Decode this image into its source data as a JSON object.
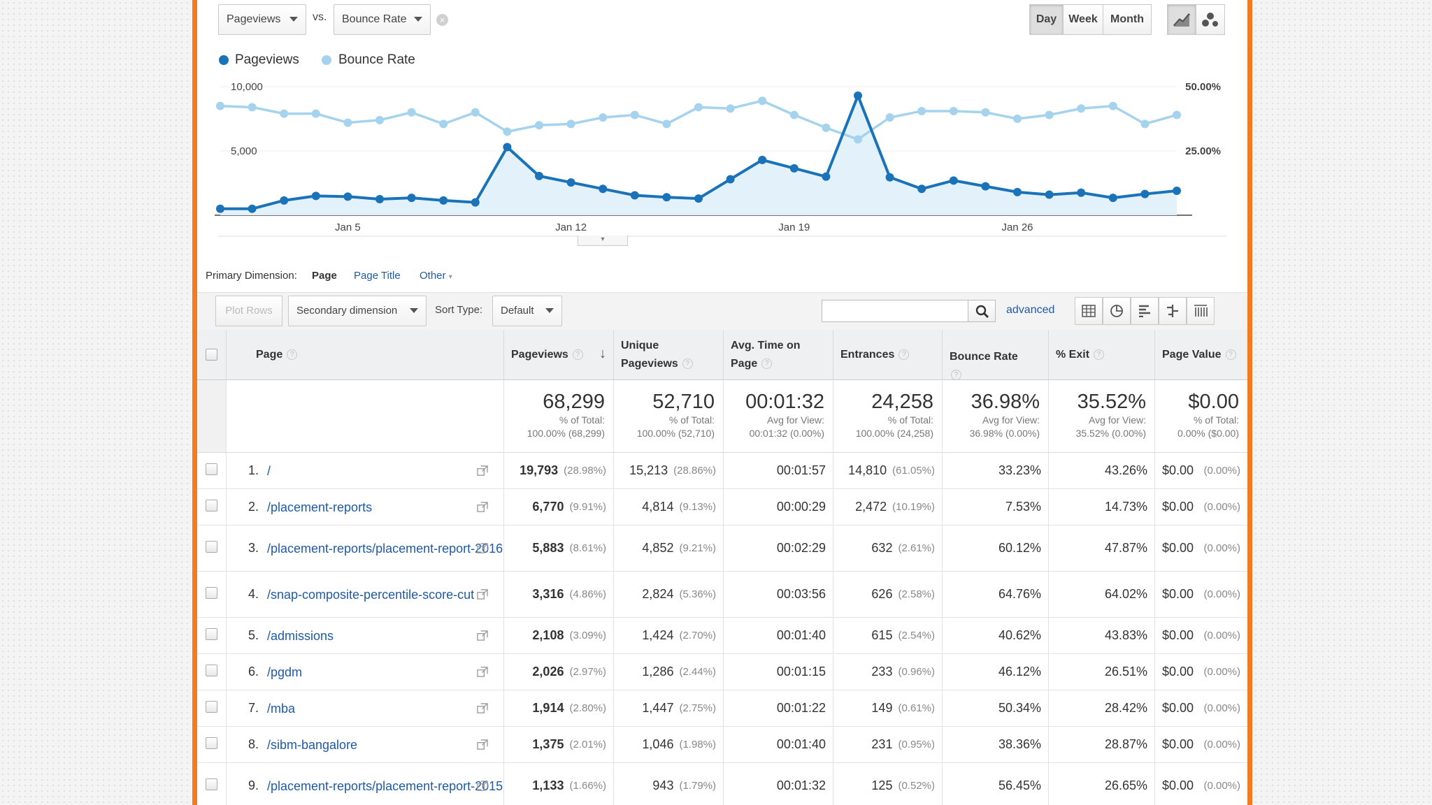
{
  "controls": {
    "metric1": "Pageviews",
    "vs": "vs.",
    "metric2": "Bounce Rate",
    "range_buttons": [
      "Day",
      "Week",
      "Month"
    ]
  },
  "legend": {
    "series1": "Pageviews",
    "series2": "Bounce Rate"
  },
  "colors": {
    "pageviews": "#1a73b9",
    "bounce_rate": "#a5d3ee",
    "frame": "#f47a20",
    "link": "#1f5aa6"
  },
  "chart_data": {
    "type": "line",
    "x_labels": [
      "Jan 5",
      "Jan 12",
      "Jan 19",
      "Jan 26"
    ],
    "left_axis": {
      "ticks": [
        "10,000",
        "5,000"
      ],
      "range": [
        0,
        10000
      ]
    },
    "right_axis": {
      "ticks": [
        "50.00%",
        "25.00%"
      ],
      "range": [
        0,
        50
      ]
    },
    "series": [
      {
        "name": "Pageviews",
        "axis": "left",
        "values": [
          500,
          500,
          1150,
          1500,
          1450,
          1250,
          1350,
          1150,
          1000,
          5300,
          3050,
          2550,
          2050,
          1550,
          1400,
          1300,
          2800,
          4300,
          3650,
          3000,
          9300,
          2950,
          2050,
          2700,
          2250,
          1800,
          1600,
          1750,
          1350,
          1650,
          1900
        ]
      },
      {
        "name": "Bounce Rate",
        "axis": "right",
        "values": [
          42.5,
          42,
          39.5,
          39.5,
          36,
          37,
          40,
          35.5,
          40,
          32.5,
          35,
          35.5,
          38,
          39,
          35.5,
          42,
          41.5,
          44.5,
          39,
          34,
          29.5,
          38,
          40.5,
          40.5,
          40,
          37.5,
          39,
          41.5,
          42.5,
          35.5,
          39
        ]
      }
    ]
  },
  "dimension": {
    "label": "Primary Dimension:",
    "options": [
      "Page",
      "Page Title",
      "Other"
    ]
  },
  "toolbar": {
    "plot_rows": "Plot Rows",
    "secondary_dimension": "Secondary dimension",
    "sort_type_label": "Sort Type:",
    "sort_type_value": "Default",
    "search_placeholder": "",
    "advanced": "advanced"
  },
  "table": {
    "headers": [
      "Page",
      "Pageviews",
      "Unique Pageviews",
      "Avg. Time on Page",
      "Entrances",
      "Bounce Rate",
      "% Exit",
      "Page Value"
    ],
    "totals": [
      {
        "big": "68,299",
        "l1": "% of Total:",
        "l2": "100.00% (68,299)"
      },
      {
        "big": "52,710",
        "l1": "% of Total:",
        "l2": "100.00% (52,710)"
      },
      {
        "big": "00:01:32",
        "l1": "Avg for View:",
        "l2": "00:01:32 (0.00%)"
      },
      {
        "big": "24,258",
        "l1": "% of Total:",
        "l2": "100.00% (24,258)"
      },
      {
        "big": "36.98%",
        "l1": "Avg for View:",
        "l2": "36.98% (0.00%)"
      },
      {
        "big": "35.52%",
        "l1": "Avg for View:",
        "l2": "35.52% (0.00%)"
      },
      {
        "big": "$0.00",
        "l1": "% of Total:",
        "l2": "0.00% ($0.00)"
      }
    ],
    "rows": [
      {
        "n": "1.",
        "page": "/",
        "pv": "19,793",
        "pvp": "(28.98%)",
        "upv": "15,213",
        "upvp": "(28.86%)",
        "time": "00:01:57",
        "ent": "14,810",
        "entp": "(61.05%)",
        "br": "33.23%",
        "exit": "43.26%",
        "val": "$0.00",
        "valp": "(0.00%)"
      },
      {
        "n": "2.",
        "page": "/placement-reports",
        "pv": "6,770",
        "pvp": "(9.91%)",
        "upv": "4,814",
        "upvp": "(9.13%)",
        "time": "00:00:29",
        "ent": "2,472",
        "entp": "(10.19%)",
        "br": "7.53%",
        "exit": "14.73%",
        "val": "$0.00",
        "valp": "(0.00%)"
      },
      {
        "n": "3.",
        "page": "/placement-reports/placement-report-2016",
        "pv": "5,883",
        "pvp": "(8.61%)",
        "upv": "4,852",
        "upvp": "(9.21%)",
        "time": "00:02:29",
        "ent": "632",
        "entp": "(2.61%)",
        "br": "60.12%",
        "exit": "47.87%",
        "val": "$0.00",
        "valp": "(0.00%)"
      },
      {
        "n": "4.",
        "page": "/snap-composite-percentile-score-cut",
        "pv": "3,316",
        "pvp": "(4.86%)",
        "upv": "2,824",
        "upvp": "(5.36%)",
        "time": "00:03:56",
        "ent": "626",
        "entp": "(2.58%)",
        "br": "64.76%",
        "exit": "64.02%",
        "val": "$0.00",
        "valp": "(0.00%)"
      },
      {
        "n": "5.",
        "page": "/admissions",
        "pv": "2,108",
        "pvp": "(3.09%)",
        "upv": "1,424",
        "upvp": "(2.70%)",
        "time": "00:01:40",
        "ent": "615",
        "entp": "(2.54%)",
        "br": "40.62%",
        "exit": "43.83%",
        "val": "$0.00",
        "valp": "(0.00%)"
      },
      {
        "n": "6.",
        "page": "/pgdm",
        "pv": "2,026",
        "pvp": "(2.97%)",
        "upv": "1,286",
        "upvp": "(2.44%)",
        "time": "00:01:15",
        "ent": "233",
        "entp": "(0.96%)",
        "br": "46.12%",
        "exit": "26.51%",
        "val": "$0.00",
        "valp": "(0.00%)"
      },
      {
        "n": "7.",
        "page": "/mba",
        "pv": "1,914",
        "pvp": "(2.80%)",
        "upv": "1,447",
        "upvp": "(2.75%)",
        "time": "00:01:22",
        "ent": "149",
        "entp": "(0.61%)",
        "br": "50.34%",
        "exit": "28.42%",
        "val": "$0.00",
        "valp": "(0.00%)"
      },
      {
        "n": "8.",
        "page": "/sibm-bangalore",
        "pv": "1,375",
        "pvp": "(2.01%)",
        "upv": "1,046",
        "upvp": "(1.98%)",
        "time": "00:01:40",
        "ent": "231",
        "entp": "(0.95%)",
        "br": "38.36%",
        "exit": "28.87%",
        "val": "$0.00",
        "valp": "(0.00%)"
      },
      {
        "n": "9.",
        "page": "/placement-reports/placement-report-2015",
        "pv": "1,133",
        "pvp": "(1.66%)",
        "upv": "943",
        "upvp": "(1.79%)",
        "time": "00:01:32",
        "ent": "125",
        "entp": "(0.52%)",
        "br": "56.45%",
        "exit": "26.65%",
        "val": "$0.00",
        "valp": "(0.00%)"
      }
    ]
  }
}
